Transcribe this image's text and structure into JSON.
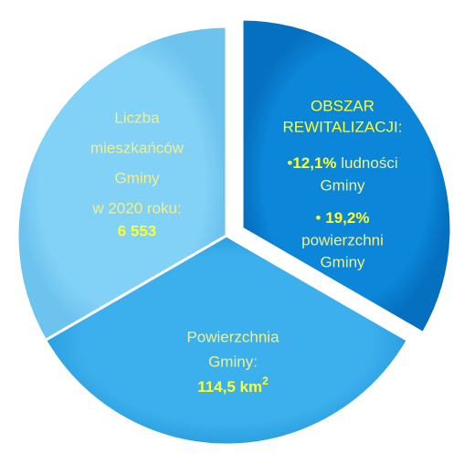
{
  "segments": [
    {
      "lines": [
        "Liczba",
        "mieszkańców",
        "Gminy",
        "w 2020 roku:"
      ],
      "value": "6 553"
    },
    {
      "lines": [
        "Powierzchnia",
        "Gminy:"
      ],
      "value": "114,5 km",
      "sup": "2"
    },
    {
      "heading": [
        "OBSZAR",
        "REWITALIZACJI:"
      ],
      "items": [
        {
          "bullet": "•",
          "bold": "12,1%",
          "text": [
            "ludności",
            "Gminy"
          ]
        },
        {
          "bullet": "•",
          "bold": "19,2%",
          "text": [
            "powierzchni",
            "Gminy"
          ]
        }
      ]
    }
  ]
}
